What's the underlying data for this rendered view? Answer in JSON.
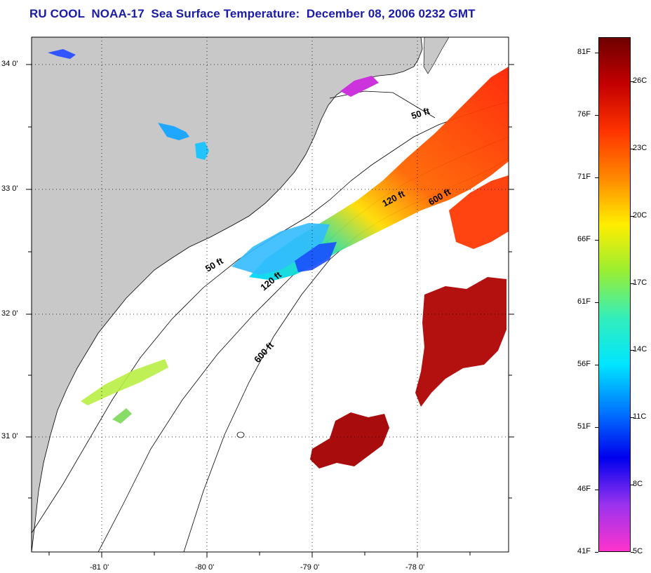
{
  "title": "RU COOL  NOAA-17  Sea Surface Temperature:  December 08, 2006 0232 GMT",
  "map": {
    "lat_labels": [
      "34 0'",
      "33 0'",
      "32 0'",
      "31 0'"
    ],
    "lon_labels": [
      "-81 0'",
      "-80 0'",
      "-79 0'",
      "-78 0'"
    ],
    "isobath_labels": [
      {
        "text": "50 ft"
      },
      {
        "text": "120 ft"
      },
      {
        "text": "600 ft"
      },
      {
        "text": "50 ft"
      },
      {
        "text": "120 ft"
      },
      {
        "text": "600 ft"
      }
    ],
    "colors": {
      "land": "#c8c8c8",
      "coast": "#000000",
      "grid": "#000000"
    }
  },
  "colorbar": {
    "fahrenheit": [
      "81F",
      "76F",
      "71F",
      "66F",
      "61F",
      "56F",
      "51F",
      "46F",
      "41F"
    ],
    "celsius": [
      "26C",
      "23C",
      "20C",
      "17C",
      "14C",
      "11C",
      "8C",
      "5C"
    ],
    "gradient_stops": [
      "#6e0000",
      "#c40000",
      "#ff3300",
      "#ff8800",
      "#ffee00",
      "#99ee33",
      "#33eebb",
      "#00e5ff",
      "#0077ff",
      "#0000ee",
      "#9933ee",
      "#ff33cc"
    ]
  }
}
